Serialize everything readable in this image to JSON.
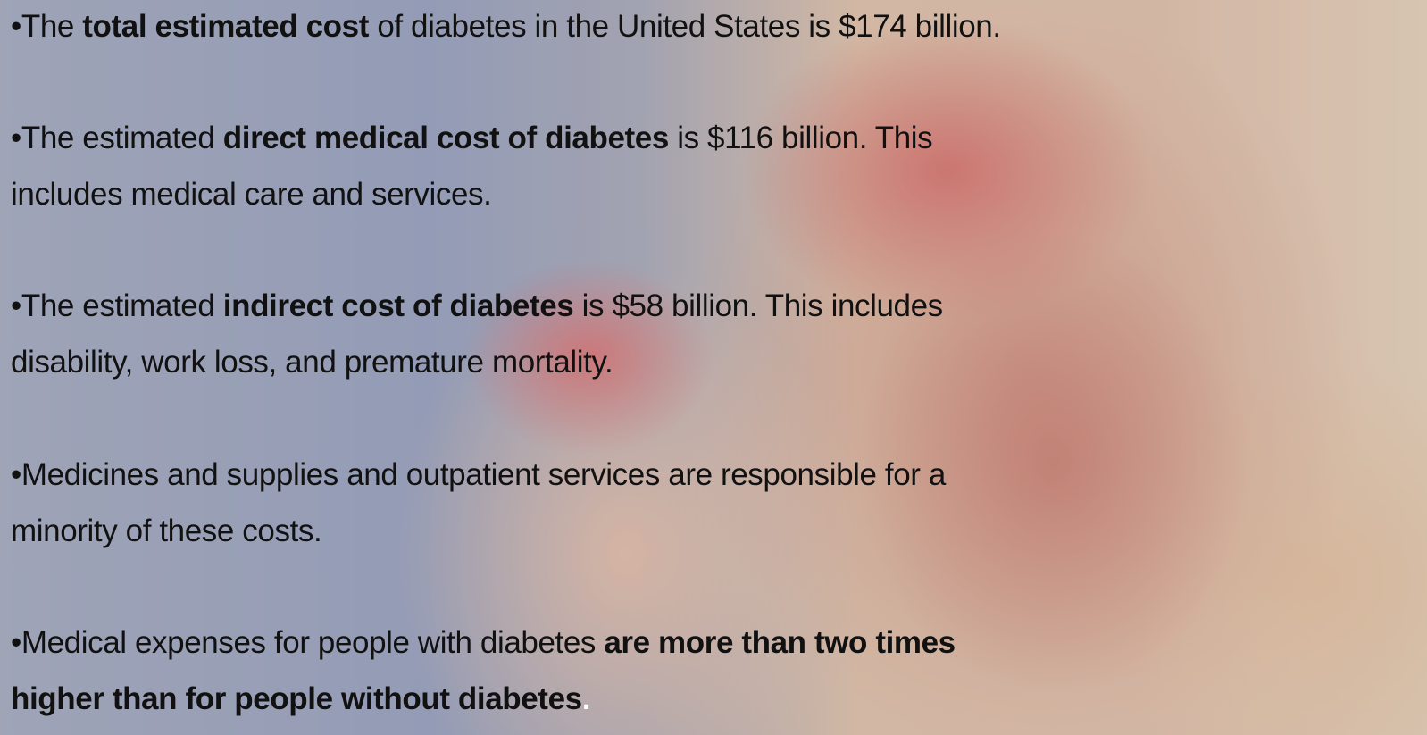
{
  "bullets": [
    {
      "lines": [
        [
          {
            "text": "•The "
          },
          {
            "text": "total estimated cost",
            "bold": true
          },
          {
            "text": " of diabetes in the United States is $174 billion."
          }
        ]
      ]
    },
    {
      "lines": [
        [
          {
            "text": "•The estimated "
          },
          {
            "text": "direct medical cost of diabetes",
            "bold": true
          },
          {
            "text": " is $116 billion. This"
          }
        ],
        [
          {
            "text": "includes medical care and services."
          }
        ]
      ]
    },
    {
      "lines": [
        [
          {
            "text": "•The estimated "
          },
          {
            "text": "indirect cost of diabetes",
            "bold": true
          },
          {
            "text": " is $58 billion. This includes"
          }
        ],
        [
          {
            "text": "disability, work loss, and premature mortality."
          }
        ]
      ]
    },
    {
      "lines": [
        [
          {
            "text": "•Medicines and supplies and outpatient services are responsible for a"
          }
        ],
        [
          {
            "text": "minority of these costs."
          }
        ]
      ]
    },
    {
      "lines": [
        [
          {
            "text": "•Medical expenses for people with diabetes "
          },
          {
            "text": "are more than two times",
            "bold": true
          }
        ],
        [
          {
            "text": "higher than for people without diabetes",
            "bold": true
          },
          {
            "text": ".",
            "bold": true,
            "color": "#ffffff"
          }
        ]
      ]
    }
  ]
}
